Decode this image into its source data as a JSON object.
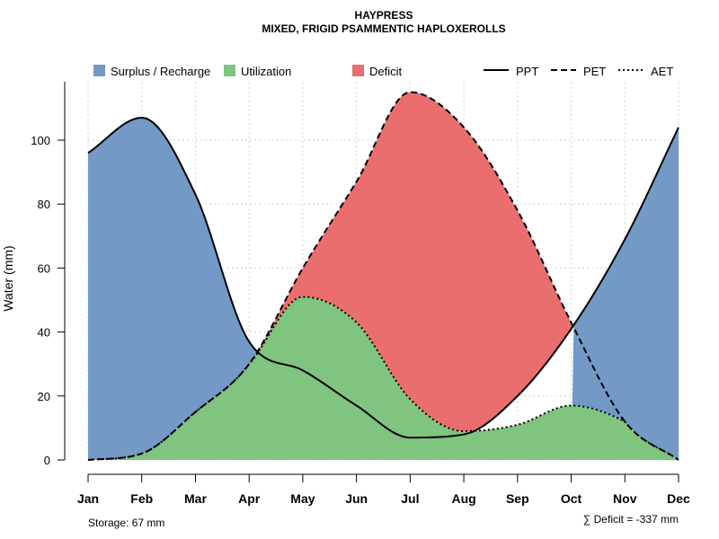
{
  "chart_data": {
    "type": "area",
    "title": "HAYPRESS",
    "subtitle": "MIXED, FRIGID PSAMMENTIC HAPLOXEROLLS",
    "ylabel": "Water (mm)",
    "xlabel": "",
    "ylim": [
      0,
      118
    ],
    "yticks": [
      0,
      20,
      40,
      60,
      80,
      100
    ],
    "grid": true,
    "categories": [
      "Jan",
      "Feb",
      "Mar",
      "Apr",
      "May",
      "Jun",
      "Jul",
      "Aug",
      "Sep",
      "Oct",
      "Nov",
      "Dec"
    ],
    "series": [
      {
        "name": "PPT",
        "style": "solid",
        "values": [
          96,
          107,
          83,
          37,
          28,
          17,
          7,
          8,
          20,
          41,
          69,
          104
        ]
      },
      {
        "name": "PET",
        "style": "dashed",
        "values": [
          0,
          2,
          15,
          30,
          60,
          87,
          115,
          104,
          78,
          43,
          12,
          0
        ]
      },
      {
        "name": "AET",
        "style": "dotted",
        "values": [
          0,
          2,
          15,
          30,
          51,
          43,
          19,
          9,
          11,
          17,
          12,
          0
        ]
      }
    ],
    "areas": [
      {
        "name": "Surplus / Recharge",
        "color": "#7399c6"
      },
      {
        "name": "Utilization",
        "color": "#7fc47f"
      },
      {
        "name": "Deficit",
        "color": "#ea6e6e"
      }
    ],
    "legend_lines": [
      "PPT",
      "PET",
      "AET"
    ],
    "legend_position": "top",
    "annotations": {
      "storage": "Storage: 67 mm",
      "deficit": "∑ Deficit = -337 mm"
    }
  }
}
